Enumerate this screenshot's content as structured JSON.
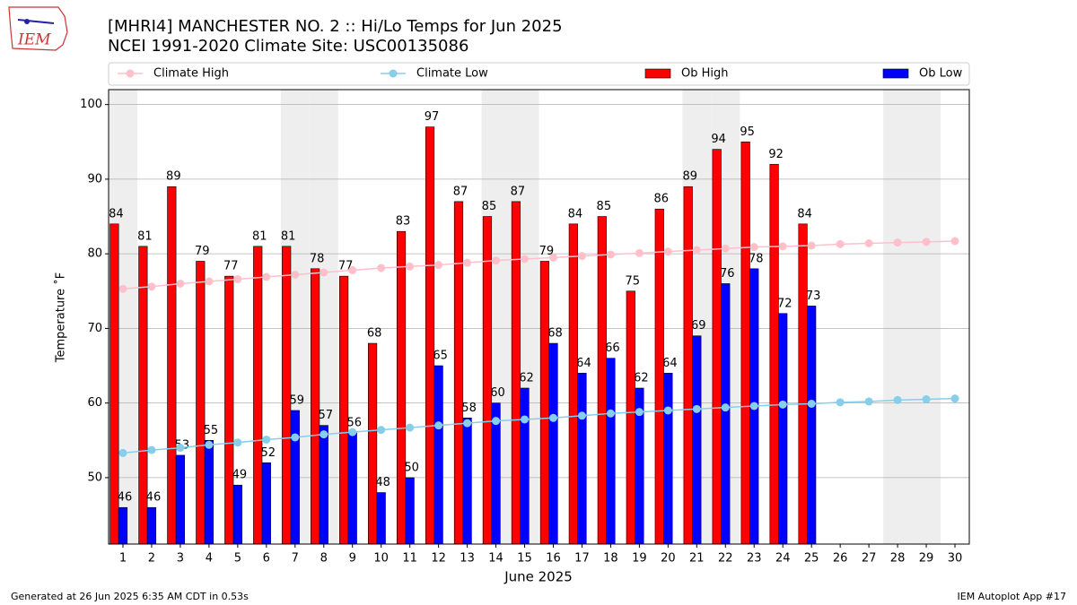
{
  "logo": "IEM",
  "footer": {
    "left": "Generated at 26 Jun 2025 6:35 AM CDT in 0.53s",
    "right": "IEM Autoplot App #17"
  },
  "chart_data": {
    "type": "bar",
    "title": "[MHRI4] MANCHESTER NO. 2 :: Hi/Lo Temps for Jun 2025",
    "subtitle": "NCEI 1991-2020 Climate Site: USC00135086",
    "xlabel": "June 2025",
    "ylabel": "Temperature ˚F",
    "x": [
      1,
      2,
      3,
      4,
      5,
      6,
      7,
      8,
      9,
      10,
      11,
      12,
      13,
      14,
      15,
      16,
      17,
      18,
      19,
      20,
      21,
      22,
      23,
      24,
      25,
      26,
      27,
      28,
      29,
      30
    ],
    "xlim": [
      0.5,
      30.5
    ],
    "xticks": [
      1,
      2,
      3,
      4,
      5,
      6,
      7,
      8,
      9,
      10,
      11,
      12,
      13,
      14,
      15,
      16,
      17,
      18,
      19,
      20,
      21,
      22,
      23,
      24,
      25,
      26,
      27,
      28,
      29,
      30
    ],
    "ylim": [
      41.1,
      102
    ],
    "yticks": [
      50,
      60,
      70,
      80,
      90,
      100
    ],
    "grid": true,
    "weekend_days": [
      1,
      7,
      8,
      14,
      15,
      21,
      22,
      28,
      29
    ],
    "weekend_color": "#eeeeee",
    "legend": "top",
    "series": [
      {
        "name": "Climate High",
        "type": "line",
        "color": "pink",
        "values": [
          75.3,
          75.6,
          76.0,
          76.3,
          76.6,
          76.9,
          77.2,
          77.5,
          77.8,
          78.1,
          78.3,
          78.5,
          78.8,
          79.1,
          79.3,
          79.5,
          79.7,
          79.9,
          80.1,
          80.3,
          80.5,
          80.7,
          80.9,
          81.0,
          81.1,
          81.3,
          81.4,
          81.5,
          81.6,
          81.7
        ]
      },
      {
        "name": "Climate Low",
        "type": "line",
        "color": "skyblue",
        "values": [
          53.3,
          53.7,
          54.0,
          54.4,
          54.7,
          55.1,
          55.4,
          55.8,
          56.1,
          56.4,
          56.7,
          57.0,
          57.3,
          57.6,
          57.8,
          58.0,
          58.3,
          58.6,
          58.8,
          59.0,
          59.2,
          59.4,
          59.6,
          59.8,
          59.9,
          60.1,
          60.2,
          60.4,
          60.5,
          60.6
        ]
      },
      {
        "name": "Ob High",
        "type": "bar",
        "color": "#ff0000",
        "values": [
          84,
          81,
          89,
          79,
          77,
          81,
          81,
          78,
          77,
          68,
          83,
          97,
          87,
          85,
          87,
          79,
          84,
          85,
          75,
          86,
          89,
          94,
          95,
          92,
          84,
          null,
          null,
          null,
          null,
          null
        ]
      },
      {
        "name": "Ob Low",
        "type": "bar",
        "color": "#0000ff",
        "values": [
          46,
          46,
          53,
          55,
          49,
          52,
          59,
          57,
          56,
          48,
          50,
          65,
          58,
          60,
          62,
          68,
          64,
          66,
          62,
          64,
          69,
          76,
          78,
          72,
          73,
          null,
          null,
          null,
          null,
          null
        ]
      }
    ]
  }
}
